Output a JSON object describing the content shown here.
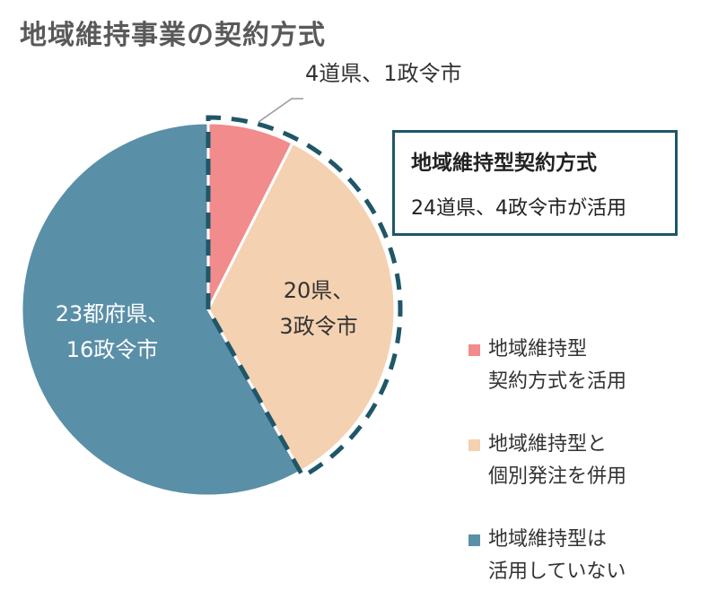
{
  "chart_data": {
    "type": "pie",
    "title": "地域維持事業の契約方式",
    "slices": [
      {
        "name": "地域維持型契約方式を活用",
        "value": 5,
        "label_lines": [
          "4道県、1政令市"
        ],
        "color": "#f28b8b"
      },
      {
        "name": "地域維持型と個別発注を併用",
        "value": 23,
        "label_lines": [
          "20県、",
          "3政令市"
        ],
        "color": "#f4d1b0"
      },
      {
        "name": "地域維持型は活用していない",
        "value": 39,
        "label_lines": [
          "23都府県、",
          "16政令市"
        ],
        "color": "#5a8fa8"
      }
    ],
    "legend": [
      {
        "lines": [
          "地域維持型",
          "契約方式を活用"
        ],
        "color": "#f28b8b"
      },
      {
        "lines": [
          "地域維持型と",
          "個別発注を併用"
        ],
        "color": "#f4d1b0"
      },
      {
        "lines": [
          "地域維持型は",
          "活用していない"
        ],
        "color": "#5a8fa8"
      }
    ],
    "legend_position": "right",
    "callout": {
      "heading": "地域維持型契約方式",
      "text": "24道県、4政令市が活用"
    },
    "highlight_color": "#1f5668"
  }
}
